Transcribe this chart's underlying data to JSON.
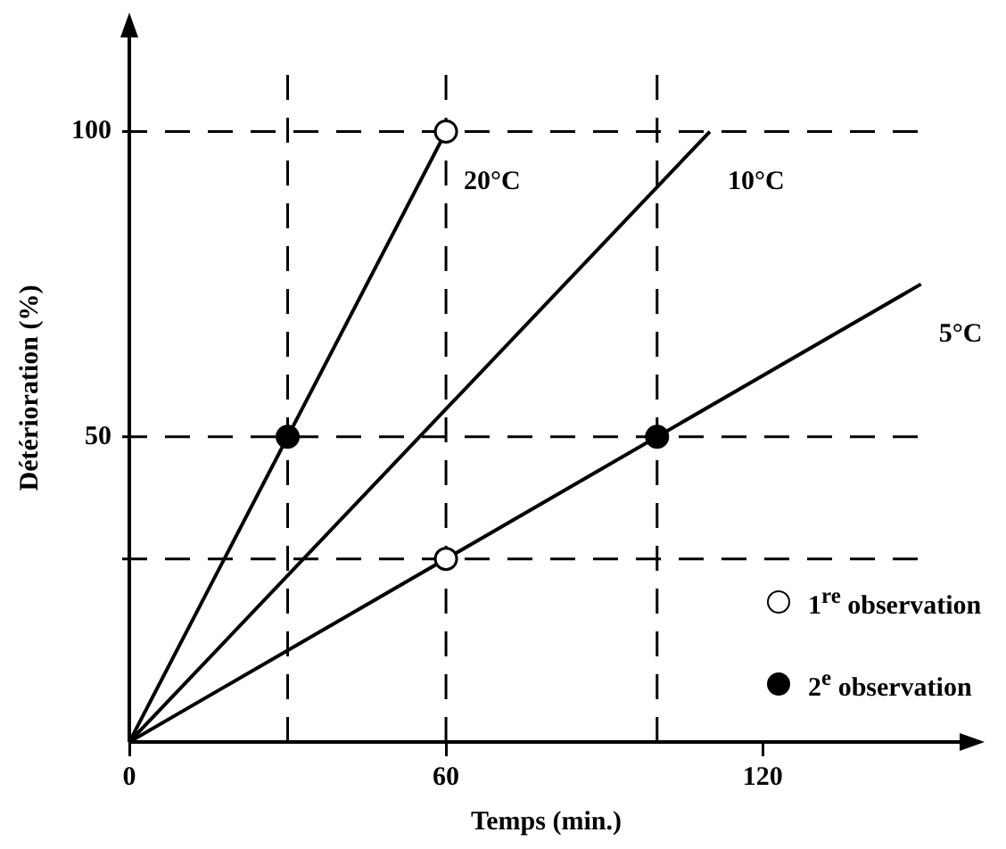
{
  "chart_data": {
    "type": "line",
    "xlabel": "Temps (min.)",
    "ylabel": "Détérioration (%)",
    "xlim": [
      0,
      158
    ],
    "ylim": [
      0,
      116
    ],
    "xticks": [
      0,
      60,
      120
    ],
    "yticks": [
      50,
      100
    ],
    "grid": false,
    "legend": "bottom right",
    "line_style": "solid",
    "marker": "none",
    "series": [
      {
        "name": "20°C",
        "color": "#000000",
        "x": [
          0,
          60
        ],
        "values": [
          0,
          100
        ]
      },
      {
        "name": "10°C",
        "color": "#000000",
        "x": [
          0,
          110
        ],
        "values": [
          0,
          100
        ]
      },
      {
        "name": "5°C",
        "color": "#000000",
        "x": [
          0,
          150
        ],
        "values": [
          0,
          75
        ]
      },
      {
        "name": "1$^{re}$ observation",
        "type": "scatter",
        "marker": "circle",
        "color": "#ffffff",
        "x": [
          60,
          60
        ],
        "values": [
          100,
          30
        ]
      },
      {
        "name": "2$^{e}$ observation",
        "type": "scatter",
        "marker": "circle",
        "color": "#000000",
        "x": [
          30,
          100
        ],
        "values": [
          50,
          50
        ]
      }
    ],
    "ref_lines": [
      {
        "axis": "y",
        "value": 100,
        "line_style": "dashed"
      },
      {
        "axis": "y",
        "value": 50,
        "line_style": "dashed"
      },
      {
        "axis": "y",
        "value": 30,
        "line_style": "dashed"
      },
      {
        "axis": "x",
        "value": 30,
        "line_style": "dashed"
      },
      {
        "axis": "x",
        "value": 60,
        "line_style": "dashed"
      },
      {
        "axis": "x",
        "value": 100,
        "line_style": "dashed"
      }
    ]
  }
}
